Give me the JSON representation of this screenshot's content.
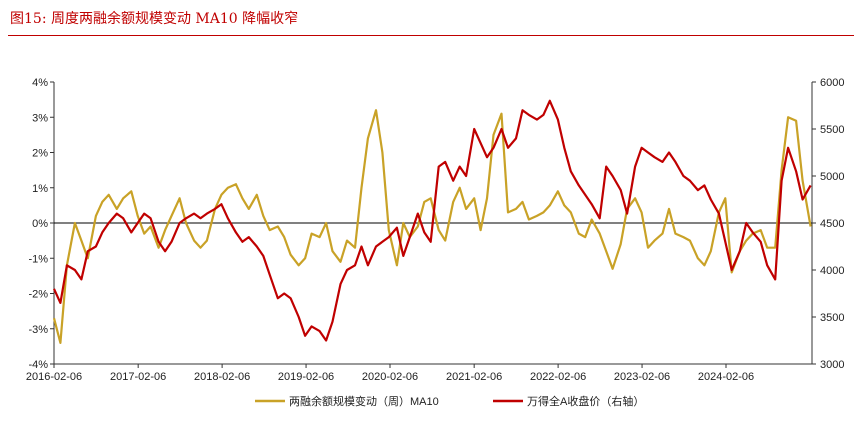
{
  "figure": {
    "label": "图15:",
    "title": "周度两融余额规模变动 MA10 降幅收窄"
  },
  "chart_data": {
    "type": "line",
    "title": "图15: 周度两融余额规模变动 MA10 降幅收窄",
    "x_ticks": [
      "2016-02-06",
      "2017-02-06",
      "2018-02-06",
      "2019-02-06",
      "2020-02-06",
      "2021-02-06",
      "2022-02-06",
      "2023-02-06",
      "2024-02-06"
    ],
    "x_range": [
      "2016-02-06",
      "2025-02-14"
    ],
    "y_left": {
      "range": [
        -0.04,
        0.04
      ],
      "ticks": [
        "4%",
        "3%",
        "2%",
        "1%",
        "0%",
        "-1%",
        "-2%",
        "-3%",
        "-4%"
      ]
    },
    "y_right": {
      "range": [
        3000,
        6000
      ],
      "ticks": [
        "6000",
        "5500",
        "5000",
        "4500",
        "4000",
        "3500",
        "3000"
      ]
    },
    "legend_position": "bottom-center",
    "grid": false,
    "colors": {
      "margin": "#c9a227",
      "index": "#c00000",
      "zero_line": "#000000",
      "title": "#c00000"
    },
    "series": [
      {
        "name": "两融余额规模变动（周）MA10",
        "axis": "left",
        "x": [
          "2016-02-06",
          "2016-03-05",
          "2016-04-02",
          "2016-05-07",
          "2016-06-04",
          "2016-07-02",
          "2016-08-06",
          "2016-09-03",
          "2016-10-01",
          "2016-11-05",
          "2016-12-03",
          "2017-01-07",
          "2017-02-04",
          "2017-03-04",
          "2017-04-01",
          "2017-05-06",
          "2017-06-03",
          "2017-07-01",
          "2017-08-05",
          "2017-09-02",
          "2017-10-07",
          "2017-11-04",
          "2017-12-02",
          "2018-01-06",
          "2018-02-03",
          "2018-03-03",
          "2018-04-07",
          "2018-05-05",
          "2018-06-02",
          "2018-07-07",
          "2018-08-04",
          "2018-09-01",
          "2018-10-06",
          "2018-11-03",
          "2018-12-01",
          "2019-01-05",
          "2019-02-02",
          "2019-03-02",
          "2019-04-06",
          "2019-05-04",
          "2019-06-01",
          "2019-07-06",
          "2019-08-03",
          "2019-09-07",
          "2019-10-05",
          "2019-11-02",
          "2019-12-07",
          "2020-01-04",
          "2020-02-01",
          "2020-03-07",
          "2020-04-04",
          "2020-05-02",
          "2020-06-06",
          "2020-07-04",
          "2020-08-01",
          "2020-09-05",
          "2020-10-03",
          "2020-11-07",
          "2020-12-05",
          "2021-01-02",
          "2021-02-06",
          "2021-03-06",
          "2021-04-03",
          "2021-05-01",
          "2021-06-05",
          "2021-07-03",
          "2021-08-07",
          "2021-09-04",
          "2021-10-02",
          "2021-11-06",
          "2021-12-04",
          "2022-01-01",
          "2022-02-05",
          "2022-03-05",
          "2022-04-02",
          "2022-05-07",
          "2022-06-04",
          "2022-07-02",
          "2022-08-06",
          "2022-09-03",
          "2022-10-01",
          "2022-11-05",
          "2022-12-03",
          "2023-01-07",
          "2023-02-04",
          "2023-03-04",
          "2023-04-01",
          "2023-05-06",
          "2023-06-03",
          "2023-07-01",
          "2023-08-05",
          "2023-09-02",
          "2023-10-07",
          "2023-11-04",
          "2023-12-02",
          "2024-01-06",
          "2024-02-03",
          "2024-03-02",
          "2024-04-06",
          "2024-05-04",
          "2024-06-01",
          "2024-07-06",
          "2024-08-03",
          "2024-09-07",
          "2024-10-05",
          "2024-11-02",
          "2024-12-07",
          "2025-01-04",
          "2025-02-08"
        ],
        "values": [
          -0.027,
          -0.034,
          -0.012,
          0.0,
          -0.005,
          -0.01,
          0.002,
          0.006,
          0.008,
          0.004,
          0.007,
          0.009,
          0.002,
          -0.003,
          -0.001,
          -0.007,
          -0.002,
          0.002,
          0.007,
          0.0,
          -0.005,
          -0.007,
          -0.005,
          0.004,
          0.008,
          0.01,
          0.011,
          0.007,
          0.004,
          0.008,
          0.002,
          -0.002,
          -0.001,
          -0.004,
          -0.009,
          -0.012,
          -0.01,
          -0.003,
          -0.004,
          0.0,
          -0.008,
          -0.011,
          -0.005,
          -0.007,
          0.01,
          0.024,
          0.032,
          0.02,
          -0.002,
          -0.012,
          0.0,
          -0.004,
          -0.001,
          0.006,
          0.007,
          -0.002,
          -0.005,
          0.006,
          0.01,
          0.004,
          0.007,
          -0.002,
          0.007,
          0.025,
          0.031,
          0.003,
          0.004,
          0.006,
          0.001,
          0.002,
          0.003,
          0.005,
          0.009,
          0.005,
          0.003,
          -0.003,
          -0.004,
          0.001,
          -0.003,
          -0.008,
          -0.013,
          -0.006,
          0.004,
          0.007,
          0.003,
          -0.007,
          -0.005,
          -0.003,
          0.004,
          -0.003,
          -0.004,
          -0.005,
          -0.01,
          -0.012,
          -0.008,
          0.003,
          0.007,
          -0.014,
          -0.008,
          -0.005,
          -0.003,
          -0.002,
          -0.007,
          -0.007,
          0.015,
          0.03,
          0.029,
          0.012,
          -0.001
        ]
      },
      {
        "name": "万得全A收盘价（右轴）",
        "axis": "right",
        "x": [
          "2016-02-06",
          "2016-03-05",
          "2016-04-02",
          "2016-05-07",
          "2016-06-04",
          "2016-07-02",
          "2016-08-06",
          "2016-09-03",
          "2016-10-01",
          "2016-11-05",
          "2016-12-03",
          "2017-01-07",
          "2017-02-04",
          "2017-03-04",
          "2017-04-01",
          "2017-05-06",
          "2017-06-03",
          "2017-07-01",
          "2017-08-05",
          "2017-09-02",
          "2017-10-07",
          "2017-11-04",
          "2017-12-02",
          "2018-01-06",
          "2018-02-03",
          "2018-03-03",
          "2018-04-07",
          "2018-05-05",
          "2018-06-02",
          "2018-07-07",
          "2018-08-04",
          "2018-09-01",
          "2018-10-06",
          "2018-11-03",
          "2018-12-01",
          "2019-01-05",
          "2019-02-02",
          "2019-03-02",
          "2019-04-06",
          "2019-05-04",
          "2019-06-01",
          "2019-07-06",
          "2019-08-03",
          "2019-09-07",
          "2019-10-05",
          "2019-11-02",
          "2019-12-07",
          "2020-01-04",
          "2020-02-01",
          "2020-03-07",
          "2020-04-04",
          "2020-05-02",
          "2020-06-06",
          "2020-07-04",
          "2020-08-01",
          "2020-09-05",
          "2020-10-03",
          "2020-11-07",
          "2020-12-05",
          "2021-01-02",
          "2021-02-06",
          "2021-03-06",
          "2021-04-03",
          "2021-05-01",
          "2021-06-05",
          "2021-07-03",
          "2021-08-07",
          "2021-09-04",
          "2021-10-02",
          "2021-11-06",
          "2021-12-04",
          "2022-01-01",
          "2022-02-05",
          "2022-03-05",
          "2022-04-02",
          "2022-05-07",
          "2022-06-04",
          "2022-07-02",
          "2022-08-06",
          "2022-09-03",
          "2022-10-01",
          "2022-11-05",
          "2022-12-03",
          "2023-01-07",
          "2023-02-04",
          "2023-03-04",
          "2023-04-01",
          "2023-05-06",
          "2023-06-03",
          "2023-07-01",
          "2023-08-05",
          "2023-09-02",
          "2023-10-07",
          "2023-11-04",
          "2023-12-02",
          "2024-01-06",
          "2024-02-03",
          "2024-03-02",
          "2024-04-06",
          "2024-05-04",
          "2024-06-01",
          "2024-07-06",
          "2024-08-03",
          "2024-09-07",
          "2024-10-05",
          "2024-11-02",
          "2024-12-07",
          "2025-01-04",
          "2025-02-08"
        ],
        "values": [
          3800,
          3650,
          4050,
          4000,
          3900,
          4200,
          4250,
          4400,
          4500,
          4600,
          4550,
          4400,
          4500,
          4600,
          4550,
          4300,
          4200,
          4300,
          4500,
          4550,
          4600,
          4550,
          4600,
          4650,
          4700,
          4550,
          4400,
          4300,
          4350,
          4250,
          4150,
          3950,
          3700,
          3750,
          3700,
          3500,
          3300,
          3400,
          3350,
          3250,
          3450,
          3850,
          4000,
          4050,
          4250,
          4050,
          4250,
          4300,
          4350,
          4450,
          4150,
          4350,
          4600,
          4400,
          4300,
          5100,
          5150,
          4950,
          5100,
          5000,
          5500,
          5350,
          5200,
          5300,
          5500,
          5300,
          5400,
          5700,
          5650,
          5600,
          5650,
          5800,
          5600,
          5300,
          5050,
          4900,
          4800,
          4700,
          4550,
          5100,
          5000,
          4850,
          4600,
          5100,
          5300,
          5250,
          5200,
          5150,
          5250,
          5150,
          5000,
          4950,
          4850,
          4900,
          4750,
          4600,
          4300,
          4000,
          4200,
          4500,
          4400,
          4300,
          4050,
          3900,
          4950,
          5300,
          5050,
          4750,
          4900
        ]
      }
    ]
  },
  "legend": [
    {
      "label": "两融余额规模变动（周）MA10",
      "color": "#c9a227"
    },
    {
      "label": "万得全A收盘价（右轴）",
      "color": "#c00000"
    }
  ]
}
